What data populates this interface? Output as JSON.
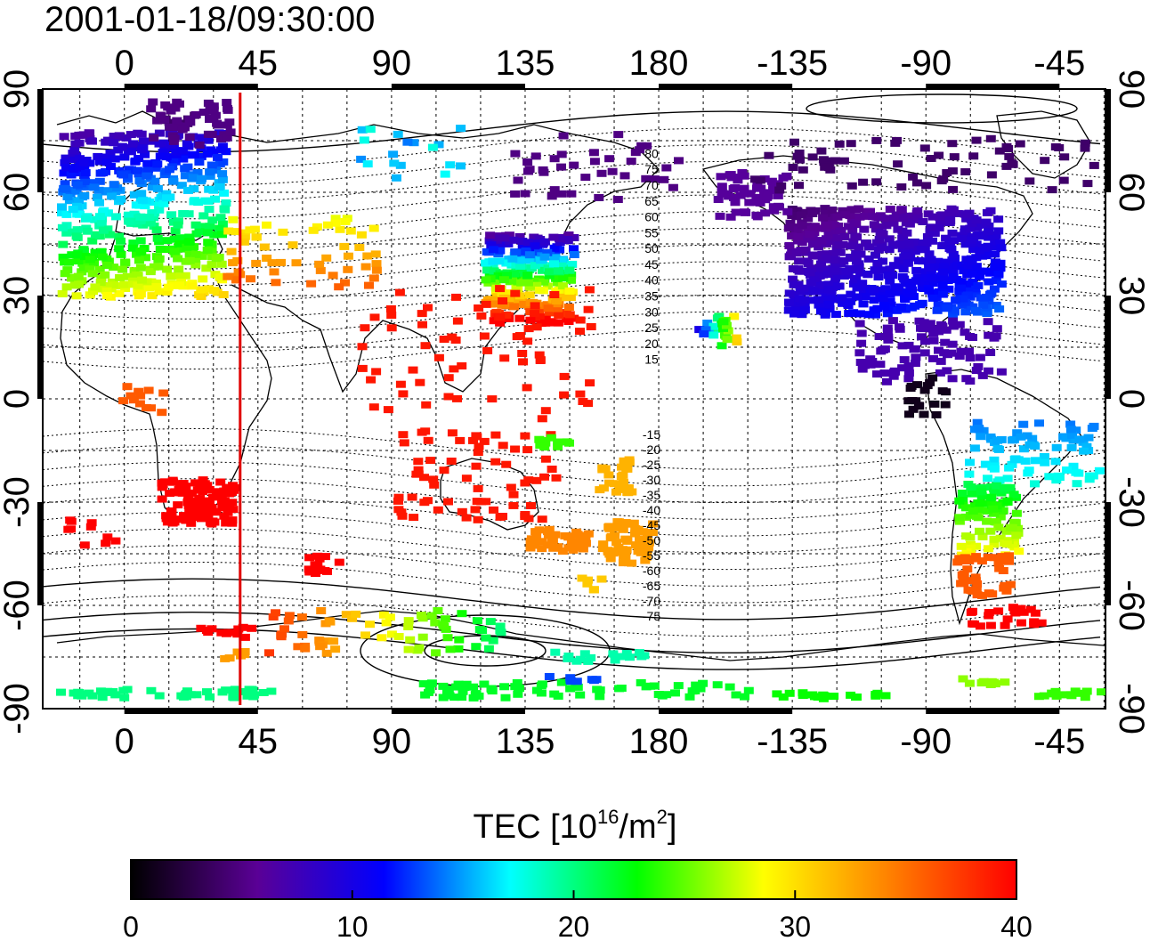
{
  "title": "2001-01-18/09:30:00",
  "map": {
    "lon_ticks_top": [
      "0",
      "45",
      "90",
      "135",
      "180",
      "-135",
      "-90",
      "-45"
    ],
    "lon_ticks_bottom": [
      "0",
      "45",
      "90",
      "135",
      "180",
      "-135",
      "-90",
      "-45"
    ],
    "lat_ticks_left": [
      "90",
      "60",
      "30",
      "0",
      "-30",
      "-60",
      "-90"
    ],
    "lat_ticks_right": [
      "90",
      "60",
      "30",
      "0",
      "-30",
      "-60",
      "-90"
    ],
    "contour_labels_north": [
      "80",
      "75",
      "70",
      "65",
      "60",
      "55",
      "50",
      "45",
      "40",
      "35",
      "30",
      "25",
      "20",
      "15"
    ],
    "contour_labels_south": [
      "-15",
      "-20",
      "-25",
      "-30",
      "-35",
      "-40",
      "-45",
      "-50",
      "-55",
      "-60",
      "-65",
      "-70",
      "-75"
    ],
    "marker_line_lon": 39,
    "marker_line_color": "#e00000"
  },
  "colorbar": {
    "title_prefix": "TEC  [10",
    "title_exp1": "16",
    "title_mid": "/m",
    "title_exp2": "2",
    "title_suffix": "]",
    "ticks": [
      "0",
      "10",
      "20",
      "30",
      "40"
    ],
    "min": 0,
    "max": 40,
    "colors": [
      "#000000",
      "#5a0096",
      "#0000ff",
      "#00ffff",
      "#00ff00",
      "#ffff00",
      "#ff8000",
      "#ff0000"
    ]
  }
}
